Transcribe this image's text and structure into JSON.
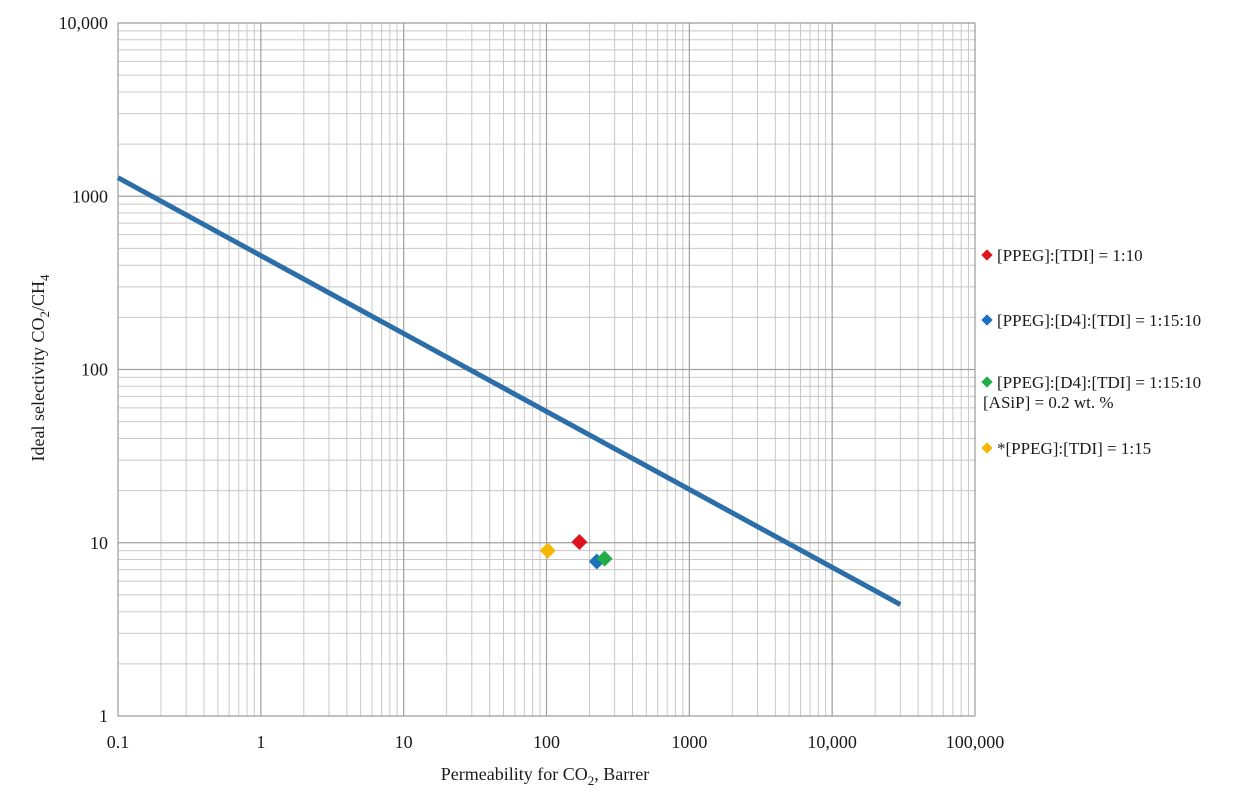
{
  "chart_data": {
    "type": "scatter",
    "title": "",
    "xlabel_main": "Permeability for CO",
    "xlabel_sub": "2",
    "xlabel_tail": ", Barrer",
    "ylabel_main": "Ideal selectivity CO",
    "ylabel_sub1": "2",
    "ylabel_mid": "/CH",
    "ylabel_sub2": "4",
    "x_scale": "log",
    "y_scale": "log",
    "xlim": [
      0.1,
      100000
    ],
    "ylim": [
      1,
      10000
    ],
    "grid": true,
    "x_ticks": [
      {
        "value": 0.1,
        "label": "0.1"
      },
      {
        "value": 1,
        "label": "1"
      },
      {
        "value": 10,
        "label": "10"
      },
      {
        "value": 100,
        "label": "100"
      },
      {
        "value": 1000,
        "label": "1000"
      },
      {
        "value": 10000,
        "label": "10,000"
      },
      {
        "value": 100000,
        "label": "100,000"
      }
    ],
    "y_ticks": [
      {
        "value": 1,
        "label": "1"
      },
      {
        "value": 10,
        "label": "10"
      },
      {
        "value": 100,
        "label": "100"
      },
      {
        "value": 1000,
        "label": "1000"
      },
      {
        "value": 10000,
        "label": "10,000"
      }
    ],
    "upper_bound_line": {
      "color": "#2c6ea8",
      "points": [
        [
          0.1,
          1280
        ],
        [
          30000,
          4.4
        ]
      ]
    },
    "legend_position": "right",
    "series": [
      {
        "name": "[PPEG]:[TDI] = 1:10",
        "color": "#e0141e",
        "points": [
          [
            170,
            10.1
          ]
        ]
      },
      {
        "name": "[PPEG]:[D4]:[TDI] = 1:15:10",
        "color": "#1f6fc0",
        "points": [
          [
            225,
            7.8
          ]
        ]
      },
      {
        "name": "[PPEG]:[D4]:[TDI] = 1:15:10",
        "note": "[ASiP] = 0.2 wt. %",
        "color": "#1fae4a",
        "points": [
          [
            255,
            8.1
          ]
        ]
      },
      {
        "name": "*[PPEG]:[TDI] = 1:15",
        "color": "#f5b800",
        "points": [
          [
            102,
            9.0
          ]
        ]
      }
    ]
  }
}
